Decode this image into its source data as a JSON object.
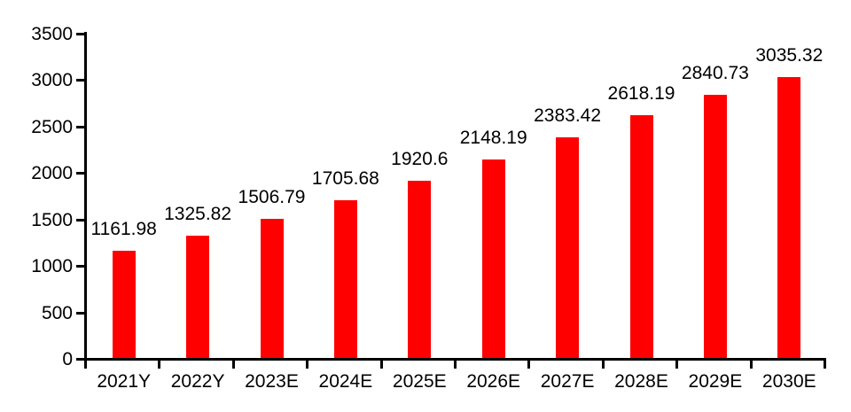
{
  "chart_data": {
    "type": "bar",
    "title": "",
    "xlabel": "",
    "ylabel": "",
    "categories": [
      "2021Y",
      "2022Y",
      "2023E",
      "2024E",
      "2025E",
      "2026E",
      "2027E",
      "2028E",
      "2029E",
      "2030E"
    ],
    "values": [
      1161.98,
      1325.82,
      1506.79,
      1705.68,
      1920.6,
      2148.19,
      2383.42,
      2618.19,
      2840.73,
      3035.32
    ],
    "value_labels": [
      "1161.98",
      "1325.82",
      "1506.79",
      "1705.68",
      "1920.6",
      "2148.19",
      "2383.42",
      "2618.19",
      "2840.73",
      "3035.32"
    ],
    "yticks": [
      0,
      500,
      1000,
      1500,
      2000,
      2500,
      3000,
      3500
    ],
    "ylim": [
      0,
      3500
    ],
    "grid": "off",
    "legend": "none",
    "bar_color": "#ff0000",
    "axis_color": "#000000",
    "text_color": "#000000",
    "background_color": "#ffffff"
  }
}
